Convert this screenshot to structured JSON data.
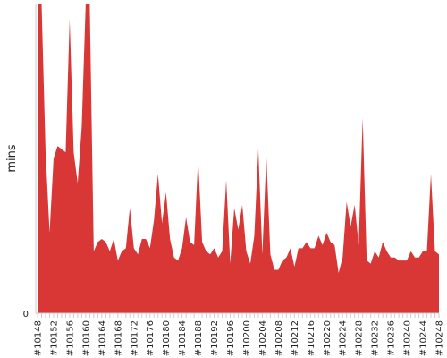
{
  "chart_data": {
    "type": "area",
    "title": "",
    "xlabel": "",
    "ylabel": "mins",
    "y_tick_labels": [
      "0"
    ],
    "grid": false,
    "legend": "none",
    "color": "#d93636",
    "x_start": 10148,
    "x_label_every": 4,
    "x_label_prefix": "#",
    "ylim": [
      0,
      100
    ],
    "values": [
      100,
      100,
      52,
      26,
      50,
      54,
      53,
      52,
      95,
      52,
      42,
      60,
      100,
      100,
      20,
      23,
      24,
      23,
      20,
      24,
      17,
      20,
      21,
      34,
      21,
      19,
      24,
      24,
      21,
      30,
      45,
      29,
      39,
      24,
      18,
      17,
      21,
      31,
      23,
      22,
      50,
      23,
      20,
      19,
      21,
      18,
      20,
      43,
      16,
      34,
      27,
      35,
      20,
      16,
      25,
      53,
      19,
      51,
      19,
      14,
      14,
      17,
      18,
      21,
      15,
      21,
      21,
      23,
      21,
      21,
      25,
      22,
      26,
      23,
      22,
      13,
      18,
      36,
      28,
      35,
      22,
      63,
      17,
      16,
      20,
      18,
      23,
      20,
      18,
      18,
      17,
      17,
      17,
      20,
      18,
      18,
      20,
      20,
      45,
      20,
      19
    ]
  }
}
